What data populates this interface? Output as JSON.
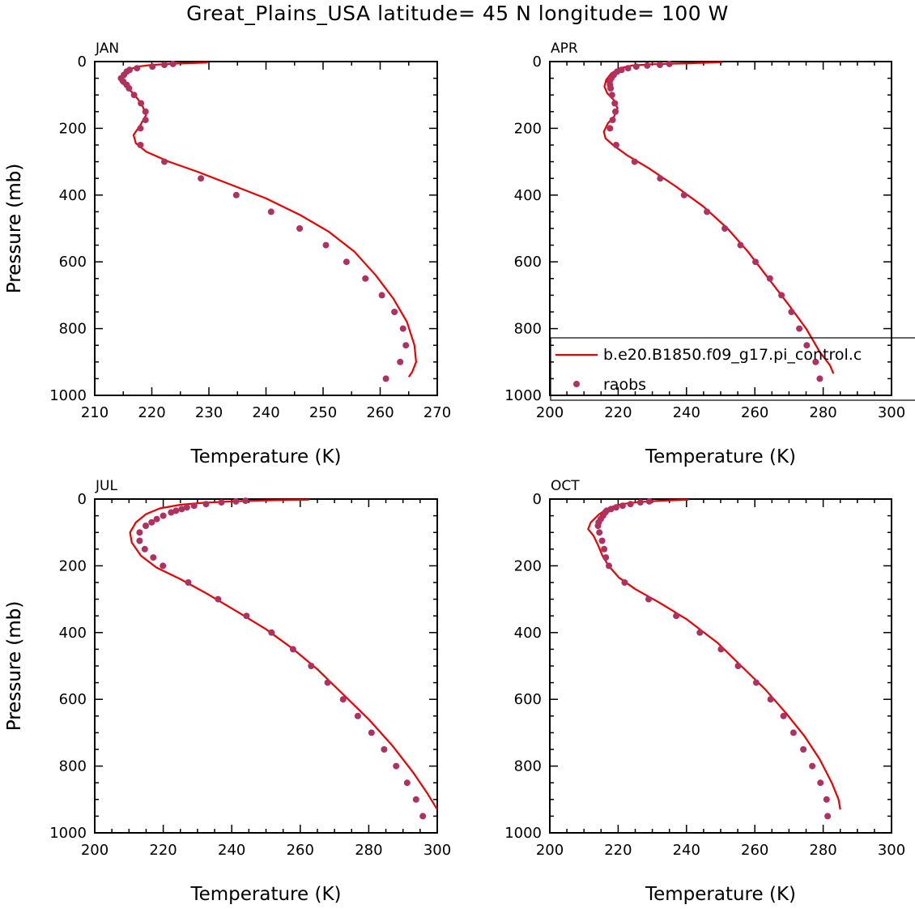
{
  "title": "Great_Plains_USA   latitude= 45 N longitude= 100 W",
  "colors": {
    "model": "#ee0000",
    "obs": "#b03060",
    "axis": "#000000"
  },
  "legend": {
    "placement": "right-middle, inside APR panel, clipped at right edge",
    "model_label": "b.e20.B1850.f09_g17.pi_control.c",
    "obs_label": "raobs"
  },
  "chart_data": [
    {
      "type": "line",
      "panel": "JAN",
      "xlabel": "Temperature (K)",
      "ylabel": "Pressure (mb)",
      "xlim": [
        210,
        270
      ],
      "ylim": [
        1000,
        0
      ],
      "xticks": [
        210,
        220,
        230,
        240,
        250,
        260,
        270
      ],
      "yticks": [
        0,
        200,
        400,
        600,
        800,
        1000
      ],
      "series": [
        {
          "name": "b.e20.B1850.f09_g17.pi_control.c",
          "style": "line",
          "points": [
            [
              229.8,
              3
            ],
            [
              224,
              6
            ],
            [
              220,
              10
            ],
            [
              217.5,
              15
            ],
            [
              215.8,
              25
            ],
            [
              214.8,
              40
            ],
            [
              214.5,
              60
            ],
            [
              215.5,
              75
            ],
            [
              217,
              100
            ],
            [
              218.3,
              130
            ],
            [
              219,
              160
            ],
            [
              218,
              190
            ],
            [
              216.8,
              220
            ],
            [
              217.2,
              245
            ],
            [
              219,
              270
            ],
            [
              223,
              300
            ],
            [
              228,
              330
            ],
            [
              234,
              370
            ],
            [
              240,
              410
            ],
            [
              246,
              460
            ],
            [
              251,
              510
            ],
            [
              255.5,
              570
            ],
            [
              259.2,
              640
            ],
            [
              262.3,
              710
            ],
            [
              264.7,
              780
            ],
            [
              266,
              850
            ],
            [
              266.3,
              900
            ],
            [
              265.6,
              930
            ],
            [
              265,
              945
            ]
          ]
        },
        {
          "name": "raobs",
          "style": "points",
          "points": [
            [
              223.7,
              7
            ],
            [
              222.2,
              10
            ],
            [
              220.1,
              15
            ],
            [
              217.4,
              20
            ],
            [
              216.1,
              25
            ],
            [
              215.6,
              30
            ],
            [
              215.1,
              40
            ],
            [
              214.6,
              50
            ],
            [
              215,
              60
            ],
            [
              215.6,
              70
            ],
            [
              216,
              80
            ],
            [
              216.9,
              100
            ],
            [
              218.1,
              125
            ],
            [
              218.9,
              150
            ],
            [
              218.9,
              175
            ],
            [
              218,
              200
            ],
            [
              218,
              250
            ],
            [
              222.2,
              300
            ],
            [
              228.6,
              350
            ],
            [
              234.8,
              400
            ],
            [
              240.9,
              450
            ],
            [
              245.9,
              500
            ],
            [
              250.5,
              550
            ],
            [
              254.1,
              600
            ],
            [
              257.4,
              650
            ],
            [
              260.3,
              700
            ],
            [
              262.5,
              750
            ],
            [
              264,
              800
            ],
            [
              264.5,
              850
            ],
            [
              263.5,
              900
            ],
            [
              261,
              950
            ]
          ]
        }
      ]
    },
    {
      "type": "line",
      "panel": "APR",
      "xlabel": "Temperature (K)",
      "ylabel": "Pressure (mb)",
      "xlim": [
        200,
        300
      ],
      "ylim": [
        1000,
        0
      ],
      "xticks": [
        200,
        220,
        240,
        260,
        280,
        300
      ],
      "yticks": [
        0,
        200,
        400,
        600,
        800,
        1000
      ],
      "series": [
        {
          "name": "b.e20.B1850.f09_g17.pi_control.c",
          "style": "line",
          "points": [
            [
              250.5,
              2
            ],
            [
              240,
              5
            ],
            [
              230,
              8
            ],
            [
              224,
              12
            ],
            [
              220.5,
              20
            ],
            [
              218,
              35
            ],
            [
              216.5,
              55
            ],
            [
              216,
              75
            ],
            [
              216.8,
              95
            ],
            [
              218.7,
              115
            ],
            [
              219.8,
              140
            ],
            [
              218.8,
              165
            ],
            [
              217,
              185
            ],
            [
              215.8,
              210
            ],
            [
              216.3,
              230
            ],
            [
              218.5,
              250
            ],
            [
              222.5,
              280
            ],
            [
              229,
              320
            ],
            [
              237,
              375
            ],
            [
              245,
              435
            ],
            [
              252,
              500
            ],
            [
              258,
              570
            ],
            [
              264,
              650
            ],
            [
              270,
              730
            ],
            [
              275,
              800
            ],
            [
              279,
              870
            ],
            [
              282,
              910
            ],
            [
              283,
              935
            ]
          ]
        },
        {
          "name": "raobs",
          "style": "points",
          "points": [
            [
              235,
              7
            ],
            [
              232.2,
              10
            ],
            [
              228.5,
              12
            ],
            [
              225.3,
              15
            ],
            [
              222.9,
              20
            ],
            [
              221,
              25
            ],
            [
              219.7,
              30
            ],
            [
              218.7,
              40
            ],
            [
              218,
              50
            ],
            [
              217.5,
              60
            ],
            [
              217.6,
              70
            ],
            [
              217.8,
              80
            ],
            [
              218.2,
              100
            ],
            [
              219,
              125
            ],
            [
              219.2,
              150
            ],
            [
              218.4,
              175
            ],
            [
              217.6,
              200
            ],
            [
              219.4,
              250
            ],
            [
              224.8,
              300
            ],
            [
              232.3,
              350
            ],
            [
              239.3,
              400
            ],
            [
              246,
              450
            ],
            [
              251.2,
              500
            ],
            [
              255.8,
              550
            ],
            [
              260.2,
              600
            ],
            [
              264.4,
              650
            ],
            [
              267.8,
              700
            ],
            [
              270.7,
              750
            ],
            [
              273,
              800
            ],
            [
              275.2,
              850
            ],
            [
              277.8,
              900
            ],
            [
              279,
              950
            ]
          ]
        }
      ]
    },
    {
      "type": "line",
      "panel": "JUL",
      "xlabel": "Temperature (K)",
      "ylabel": "Pressure (mb)",
      "xlim": [
        200,
        300
      ],
      "ylim": [
        1000,
        0
      ],
      "xticks": [
        200,
        220,
        240,
        260,
        280,
        300
      ],
      "yticks": [
        0,
        200,
        400,
        600,
        800,
        1000
      ],
      "series": [
        {
          "name": "b.e20.B1850.f09_g17.pi_control.c",
          "style": "line",
          "points": [
            [
              262.5,
              2
            ],
            [
              250,
              4
            ],
            [
              240,
              7
            ],
            [
              232,
              11
            ],
            [
              225,
              17
            ],
            [
              219,
              28
            ],
            [
              215,
              45
            ],
            [
              212,
              70
            ],
            [
              210.3,
              100
            ],
            [
              210.8,
              130
            ],
            [
              213.5,
              170
            ],
            [
              218,
              205
            ],
            [
              225,
              240
            ],
            [
              233,
              285
            ],
            [
              242,
              340
            ],
            [
              250,
              390
            ],
            [
              258,
              450
            ],
            [
              265,
              510
            ],
            [
              272,
              580
            ],
            [
              280,
              660
            ],
            [
              287,
              740
            ],
            [
              293,
              820
            ],
            [
              297,
              880
            ],
            [
              300,
              930
            ]
          ]
        },
        {
          "name": "raobs",
          "style": "points",
          "points": [
            [
              244,
              5
            ],
            [
              241.2,
              7
            ],
            [
              237,
              10
            ],
            [
              232.5,
              15
            ],
            [
              229,
              20
            ],
            [
              226.9,
              25
            ],
            [
              225.4,
              30
            ],
            [
              223.7,
              35
            ],
            [
              222.3,
              40
            ],
            [
              220,
              50
            ],
            [
              218.1,
              60
            ],
            [
              216.6,
              70
            ],
            [
              214.9,
              80
            ],
            [
              213.1,
              100
            ],
            [
              213.1,
              125
            ],
            [
              214.6,
              150
            ],
            [
              217.1,
              175
            ],
            [
              219.9,
              200
            ],
            [
              227.3,
              250
            ],
            [
              236,
              300
            ],
            [
              244.3,
              350
            ],
            [
              251.6,
              400
            ],
            [
              257.9,
              450
            ],
            [
              263.2,
              500
            ],
            [
              268,
              550
            ],
            [
              272.5,
              600
            ],
            [
              276.8,
              650
            ],
            [
              280.8,
              700
            ],
            [
              284.5,
              750
            ],
            [
              288,
              800
            ],
            [
              291.2,
              850
            ],
            [
              293.8,
              900
            ],
            [
              295.8,
              950
            ]
          ]
        }
      ]
    },
    {
      "type": "line",
      "panel": "OCT",
      "xlabel": "Temperature (K)",
      "ylabel": "Pressure (mb)",
      "xlim": [
        200,
        300
      ],
      "ylim": [
        1000,
        0
      ],
      "xticks": [
        200,
        220,
        240,
        260,
        280,
        300
      ],
      "yticks": [
        0,
        200,
        400,
        600,
        800,
        1000
      ],
      "series": [
        {
          "name": "b.e20.B1850.f09_g17.pi_control.c",
          "style": "line",
          "points": [
            [
              240.5,
              2
            ],
            [
              232,
              5
            ],
            [
              226,
              9
            ],
            [
              221,
              15
            ],
            [
              217.5,
              25
            ],
            [
              214.5,
              45
            ],
            [
              212,
              70
            ],
            [
              211.2,
              90
            ],
            [
              212.8,
              110
            ],
            [
              214.2,
              140
            ],
            [
              215.4,
              170
            ],
            [
              217.2,
              200
            ],
            [
              220.2,
              235
            ],
            [
              225,
              270
            ],
            [
              232,
              310
            ],
            [
              240,
              360
            ],
            [
              249,
              430
            ],
            [
              256,
              500
            ],
            [
              263,
              570
            ],
            [
              269,
              640
            ],
            [
              274.5,
              710
            ],
            [
              279,
              780
            ],
            [
              282.5,
              850
            ],
            [
              284.5,
              900
            ],
            [
              285,
              930
            ]
          ]
        },
        {
          "name": "raobs",
          "style": "points",
          "points": [
            [
              229.1,
              7
            ],
            [
              226.5,
              10
            ],
            [
              223.6,
              15
            ],
            [
              221.3,
              20
            ],
            [
              219.4,
              25
            ],
            [
              217.9,
              30
            ],
            [
              216.6,
              35
            ],
            [
              216.2,
              40
            ],
            [
              215.6,
              50
            ],
            [
              214.9,
              60
            ],
            [
              214.3,
              70
            ],
            [
              214.1,
              80
            ],
            [
              214.5,
              100
            ],
            [
              215.3,
              125
            ],
            [
              215.9,
              150
            ],
            [
              216.4,
              175
            ],
            [
              217.3,
              200
            ],
            [
              221.9,
              250
            ],
            [
              228.9,
              300
            ],
            [
              237,
              350
            ],
            [
              243.9,
              400
            ],
            [
              250.1,
              450
            ],
            [
              255.1,
              500
            ],
            [
              260.4,
              550
            ],
            [
              264.6,
              600
            ],
            [
              268.4,
              650
            ],
            [
              271.3,
              700
            ],
            [
              274.2,
              750
            ],
            [
              276.8,
              800
            ],
            [
              279.2,
              850
            ],
            [
              281,
              900
            ],
            [
              281.3,
              950
            ]
          ]
        }
      ]
    }
  ]
}
